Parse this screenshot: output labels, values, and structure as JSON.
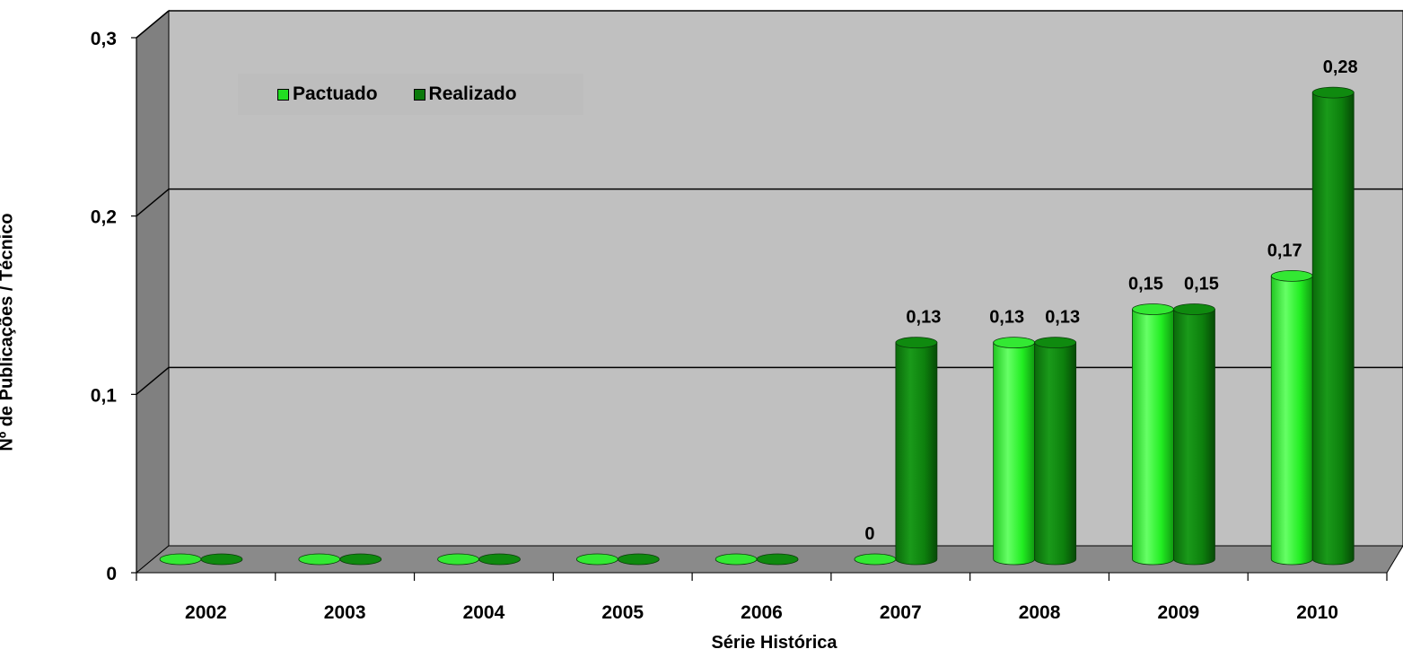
{
  "chart_data": {
    "type": "bar",
    "style": "3d-cylinder",
    "categories": [
      "2002",
      "2003",
      "2004",
      "2005",
      "2006",
      "2007",
      "2008",
      "2009",
      "2010"
    ],
    "series": [
      {
        "name": "Pactuado",
        "color": "#22dd22",
        "values": [
          0,
          0,
          0,
          0,
          0,
          0,
          0.13,
          0.15,
          0.17
        ],
        "labels": [
          "",
          "",
          "",
          "",
          "",
          "0",
          "0,13",
          "0,15",
          "0,17"
        ]
      },
      {
        "name": "Realizado",
        "color": "#0b7a0b",
        "values": [
          0,
          0,
          0,
          0,
          0,
          0.13,
          0.13,
          0.15,
          0.28
        ],
        "labels": [
          "",
          "",
          "",
          "",
          "",
          "0,13",
          "0,13",
          "0,15",
          "0,28"
        ]
      }
    ],
    "ylim": [
      0,
      0.3
    ],
    "yticks": [
      0,
      0.1,
      0.2,
      0.3
    ],
    "ytick_labels": [
      "0",
      "0,1",
      "0,2",
      "0,3"
    ],
    "xlabel": "Série Histórica",
    "ylabel": "Nº de Publicações / Técnico",
    "grid": true,
    "legend_position": "top-left"
  }
}
